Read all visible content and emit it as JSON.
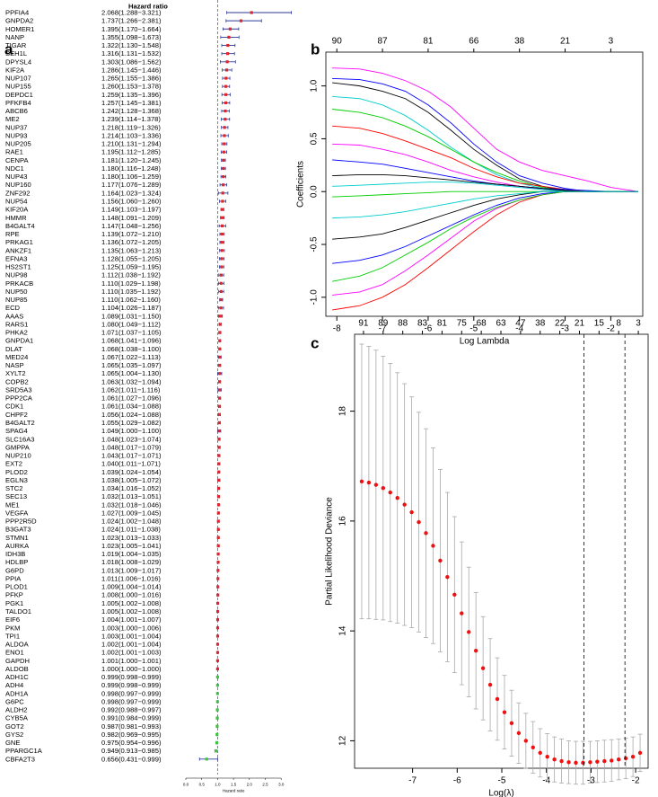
{
  "chart_data": [
    {
      "type": "forest",
      "panel": "a",
      "title": "Hazard ratio",
      "xlabel": "Hazard ratio",
      "categories": [
        "PPFIA4",
        "GNPDA2",
        "HOMER1",
        "NANP",
        "TIGAR",
        "SEH1L",
        "DPYSL4",
        "KIF2A",
        "NUP107",
        "NUP155",
        "DEPDC1",
        "PFKFB4",
        "ABCB6",
        "ME2",
        "NUP37",
        "NUP93",
        "NUP205",
        "RAE1",
        "CENPA",
        "NDC1",
        "NUP43",
        "NUP160",
        "ZNF292",
        "NUP54",
        "KIF20A",
        "HMMR",
        "B4GALT4",
        "RPE",
        "PRKAG1",
        "ANKZF1",
        "EFNA3",
        "HS2ST1",
        "NUP98",
        "PRKACB",
        "NUP50",
        "NUP85",
        "ECD",
        "AAAS",
        "RARS1",
        "PHKA2",
        "GNPDA1",
        "DLAT",
        "MED24",
        "NASP",
        "XYLT2",
        "COPB2",
        "SRD5A3",
        "PPP2CA",
        "CDK1",
        "CHPF2",
        "B4GALT2",
        "SPAG4",
        "SLC16A3",
        "GMPPA",
        "NUP210",
        "EXT2",
        "PLOD2",
        "EGLN3",
        "STC2",
        "SEC13",
        "ME1",
        "VEGFA",
        "PPP2R5D",
        "B3GAT3",
        "STMN1",
        "AURKA",
        "IDH3B",
        "HDLBP",
        "G6PD",
        "PPIA",
        "PLOD1",
        "PFKP",
        "PGK1",
        "TALDO1",
        "EIF6",
        "PKM",
        "TPI1",
        "ALDOA",
        "ENO1",
        "GAPDH",
        "ALDOB",
        "ADH1C",
        "ADH4",
        "ADH1A",
        "G6PC",
        "ALDH2",
        "CYB5A",
        "GOT2",
        "GYS2",
        "GNE",
        "PPARGC1A",
        "CBFA2T3"
      ],
      "values": [
        2.068,
        1.737,
        1.395,
        1.355,
        1.322,
        1.316,
        1.303,
        1.286,
        1.265,
        1.26,
        1.259,
        1.257,
        1.242,
        1.239,
        1.218,
        1.214,
        1.21,
        1.195,
        1.181,
        1.18,
        1.18,
        1.177,
        1.164,
        1.156,
        1.149,
        1.148,
        1.147,
        1.139,
        1.136,
        1.135,
        1.128,
        1.125,
        1.112,
        1.11,
        1.11,
        1.11,
        1.104,
        1.089,
        1.08,
        1.071,
        1.068,
        1.068,
        1.067,
        1.065,
        1.065,
        1.063,
        1.062,
        1.061,
        1.061,
        1.056,
        1.055,
        1.049,
        1.048,
        1.048,
        1.043,
        1.04,
        1.039,
        1.038,
        1.034,
        1.032,
        1.032,
        1.027,
        1.024,
        1.024,
        1.023,
        1.023,
        1.019,
        1.018,
        1.013,
        1.011,
        1.009,
        1.008,
        1.005,
        1.005,
        1.004,
        1.003,
        1.003,
        1.002,
        1.002,
        1.001,
        1.0,
        0.999,
        0.999,
        0.998,
        0.998,
        0.992,
        0.991,
        0.987,
        0.982,
        0.975,
        0.949,
        0.656
      ],
      "lower": [
        1.288,
        1.266,
        1.17,
        1.098,
        1.13,
        1.131,
        1.086,
        1.145,
        1.155,
        1.153,
        1.135,
        1.145,
        1.128,
        1.114,
        1.119,
        1.103,
        1.131,
        1.112,
        1.12,
        1.116,
        1.106,
        1.076,
        1.023,
        1.06,
        1.103,
        1.091,
        1.048,
        1.072,
        1.072,
        1.063,
        1.055,
        1.059,
        1.038,
        1.029,
        1.035,
        1.062,
        1.026,
        1.031,
        1.049,
        1.037,
        1.041,
        1.038,
        1.022,
        1.035,
        1.004,
        1.032,
        1.011,
        1.027,
        1.034,
        1.024,
        1.029,
        1.0,
        1.023,
        1.017,
        1.017,
        1.011,
        1.024,
        1.005,
        1.016,
        1.013,
        1.018,
        1.009,
        1.002,
        1.011,
        1.013,
        1.005,
        1.004,
        1.008,
        1.009,
        1.006,
        1.004,
        1.0,
        1.002,
        1.002,
        1.001,
        1.0,
        1.001,
        1.001,
        1.001,
        1.0,
        1.0,
        0.998,
        0.998,
        0.997,
        0.997,
        0.988,
        0.984,
        0.981,
        0.969,
        0.954,
        0.913,
        0.431
      ],
      "upper": [
        3.321,
        2.381,
        1.664,
        1.673,
        1.548,
        1.532,
        1.562,
        1.446,
        1.386,
        1.378,
        1.396,
        1.381,
        1.368,
        1.378,
        1.326,
        1.336,
        1.294,
        1.285,
        1.245,
        1.248,
        1.259,
        1.289,
        1.324,
        1.26,
        1.197,
        1.209,
        1.256,
        1.21,
        1.205,
        1.213,
        1.205,
        1.195,
        1.192,
        1.198,
        1.192,
        1.16,
        1.187,
        1.15,
        1.112,
        1.105,
        1.096,
        1.1,
        1.113,
        1.097,
        1.13,
        1.094,
        1.116,
        1.096,
        1.088,
        1.088,
        1.082,
        1.1,
        1.074,
        1.079,
        1.071,
        1.071,
        1.054,
        1.072,
        1.052,
        1.051,
        1.046,
        1.045,
        1.048,
        1.038,
        1.033,
        1.041,
        1.035,
        1.029,
        1.017,
        1.016,
        1.014,
        1.016,
        1.008,
        1.008,
        1.007,
        1.006,
        1.004,
        1.004,
        1.003,
        1.001,
        1.0,
        0.999,
        0.999,
        0.999,
        0.999,
        0.997,
        0.999,
        0.993,
        0.995,
        0.996,
        0.985,
        0.999
      ],
      "value_labels": [
        "2.068(1.288−3.321)",
        "1.737(1.266−2.381)",
        "1.395(1.170−1.664)",
        "1.355(1.098−1.673)",
        "1.322(1.130−1.548)",
        "1.316(1.131−1.532)",
        "1.303(1.086−1.562)",
        "1.286(1.145−1.446)",
        "1.265(1.155−1.386)",
        "1.260(1.153−1.378)",
        "1.259(1.135−1.396)",
        "1.257(1.145−1.381)",
        "1.242(1.128−1.368)",
        "1.239(1.114−1.378)",
        "1.218(1.119−1.326)",
        "1.214(1.103−1.336)",
        "1.210(1.131−1.294)",
        "1.195(1.112−1.285)",
        "1.181(1.120−1.245)",
        "1.180(1.116−1.248)",
        "1.180(1.106−1.259)",
        "1.177(1.076−1.289)",
        "1.164(1.023−1.324)",
        "1.156(1.060−1.260)",
        "1.149(1.103−1.197)",
        "1.148(1.091−1.209)",
        "1.147(1.048−1.256)",
        "1.139(1.072−1.210)",
        "1.136(1.072−1.205)",
        "1.135(1.063−1.213)",
        "1.128(1.055−1.205)",
        "1.125(1.059−1.195)",
        "1.112(1.038−1.192)",
        "1.110(1.029−1.198)",
        "1.110(1.035−1.192)",
        "1.110(1.062−1.160)",
        "1.104(1.026−1.187)",
        "1.089(1.031−1.150)",
        "1.080(1.049−1.112)",
        "1.071(1.037−1.105)",
        "1.068(1.041−1.096)",
        "1.068(1.038−1.100)",
        "1.067(1.022−1.113)",
        "1.065(1.035−1.097)",
        "1.065(1.004−1.130)",
        "1.063(1.032−1.094)",
        "1.062(1.011−1.116)",
        "1.061(1.027−1.096)",
        "1.061(1.034−1.088)",
        "1.056(1.024−1.088)",
        "1.055(1.029−1.082)",
        "1.049(1.000−1.100)",
        "1.048(1.023−1.074)",
        "1.048(1.017−1.079)",
        "1.043(1.017−1.071)",
        "1.040(1.011−1.071)",
        "1.039(1.024−1.054)",
        "1.038(1.005−1.072)",
        "1.034(1.016−1.052)",
        "1.032(1.013−1.051)",
        "1.032(1.018−1.046)",
        "1.027(1.009−1.045)",
        "1.024(1.002−1.048)",
        "1.024(1.011−1.038)",
        "1.023(1.013−1.033)",
        "1.023(1.005−1.041)",
        "1.019(1.004−1.035)",
        "1.018(1.008−1.029)",
        "1.013(1.009−1.017)",
        "1.011(1.006−1.016)",
        "1.009(1.004−1.014)",
        "1.008(1.000−1.016)",
        "1.005(1.002−1.008)",
        "1.005(1.002−1.008)",
        "1.004(1.001−1.007)",
        "1.003(1.000−1.006)",
        "1.003(1.001−1.004)",
        "1.002(1.001−1.004)",
        "1.002(1.001−1.003)",
        "1.001(1.000−1.001)",
        "1.000(1.000−1.000)",
        "0.999(0.998−0.999)",
        "0.999(0.998−0.999)",
        "0.998(0.997−0.999)",
        "0.998(0.997−0.999)",
        "0.992(0.988−0.997)",
        "0.991(0.984−0.999)",
        "0.987(0.981−0.993)",
        "0.982(0.969−0.995)",
        "0.975(0.954−0.996)",
        "0.949(0.913−0.985)",
        "0.656(0.431−0.999)"
      ],
      "refline": 1,
      "xlim": [
        0,
        3.35
      ],
      "xticks": [
        {
          "value": 0,
          "label": "0.0"
        },
        {
          "value": 0.5,
          "label": "0.5"
        },
        {
          "value": 1,
          "label": "1.0"
        },
        {
          "value": 1.5,
          "label": "1.5"
        },
        {
          "value": 2,
          "label": "2.0"
        },
        {
          "value": 2.5,
          "label": "2.5"
        },
        {
          "value": 3,
          "label": "3.0"
        }
      ],
      "colors": {
        "risk": "#e0242b",
        "protective": "#3cc43c",
        "interval": "#2b3a9a"
      }
    },
    {
      "type": "line",
      "panel": "b",
      "xlabel": "Log Lambda",
      "ylabel": "Coefficients",
      "x": [
        -8.1,
        -7.5,
        -7,
        -6.5,
        -6,
        -5.5,
        -5,
        -4.5,
        -4,
        -3.5,
        -3,
        -2.5,
        -2,
        -1.4
      ],
      "series": [
        {
          "color": "#ff00ff",
          "values": [
            1.17,
            1.16,
            1.12,
            1.05,
            0.95,
            0.8,
            0.6,
            0.4,
            0.28,
            0.2,
            0.15,
            0.1,
            0.04,
            0
          ]
        },
        {
          "color": "#0000ff",
          "values": [
            1.07,
            1.06,
            1.02,
            0.95,
            0.82,
            0.65,
            0.45,
            0.28,
            0.15,
            0.08,
            0.03,
            0,
            0,
            0
          ]
        },
        {
          "color": "#000000",
          "values": [
            1.03,
            1.0,
            0.95,
            0.88,
            0.75,
            0.58,
            0.4,
            0.25,
            0.12,
            0.05,
            0.01,
            0,
            0,
            0
          ]
        },
        {
          "color": "#00cdcd",
          "values": [
            0.9,
            0.88,
            0.82,
            0.72,
            0.58,
            0.42,
            0.28,
            0.16,
            0.08,
            0.03,
            0,
            0,
            0,
            0
          ]
        },
        {
          "color": "#00cd00",
          "values": [
            0.78,
            0.75,
            0.7,
            0.62,
            0.52,
            0.4,
            0.28,
            0.18,
            0.1,
            0.04,
            0.01,
            0,
            0,
            0
          ]
        },
        {
          "color": "#ff0000",
          "values": [
            0.62,
            0.6,
            0.55,
            0.48,
            0.4,
            0.32,
            0.22,
            0.14,
            0.08,
            0.05,
            0.02,
            0,
            0,
            0
          ]
        },
        {
          "color": "#ff00ff",
          "values": [
            0.45,
            0.44,
            0.4,
            0.35,
            0.28,
            0.2,
            0.14,
            0.09,
            0.05,
            0.02,
            0,
            0,
            0,
            0
          ]
        },
        {
          "color": "#0000ff",
          "values": [
            0.3,
            0.28,
            0.26,
            0.22,
            0.18,
            0.14,
            0.1,
            0.07,
            0.05,
            0.03,
            0.02,
            0.01,
            0,
            0
          ]
        },
        {
          "color": "#000000",
          "values": [
            0.15,
            0.16,
            0.16,
            0.15,
            0.13,
            0.11,
            0.09,
            0.07,
            0.05,
            0.03,
            0.01,
            0,
            0,
            0
          ]
        },
        {
          "color": "#00cdcd",
          "values": [
            0.05,
            0.06,
            0.07,
            0.08,
            0.09,
            0.09,
            0.08,
            0.06,
            0.04,
            0.02,
            0,
            0,
            0,
            0
          ]
        },
        {
          "color": "#00cd00",
          "values": [
            -0.05,
            -0.04,
            -0.03,
            -0.02,
            -0.01,
            0,
            0,
            0,
            0,
            0,
            0,
            0,
            0,
            0
          ]
        },
        {
          "color": "#ff0000",
          "values": [
            -1.12,
            -1.08,
            -1.0,
            -0.88,
            -0.72,
            -0.55,
            -0.38,
            -0.22,
            -0.1,
            -0.03,
            0,
            0,
            0,
            0
          ]
        },
        {
          "color": "#ff00ff",
          "values": [
            -0.98,
            -0.95,
            -0.88,
            -0.75,
            -0.6,
            -0.44,
            -0.28,
            -0.16,
            -0.08,
            -0.03,
            0,
            0,
            0,
            0
          ]
        },
        {
          "color": "#0000ff",
          "values": [
            -0.68,
            -0.65,
            -0.6,
            -0.52,
            -0.42,
            -0.32,
            -0.22,
            -0.13,
            -0.06,
            -0.02,
            0,
            0,
            0,
            0
          ]
        },
        {
          "color": "#000000",
          "values": [
            -0.45,
            -0.43,
            -0.4,
            -0.34,
            -0.27,
            -0.2,
            -0.13,
            -0.07,
            -0.03,
            0,
            0,
            0,
            0,
            0
          ]
        },
        {
          "color": "#00cd00",
          "values": [
            -0.85,
            -0.8,
            -0.72,
            -0.6,
            -0.48,
            -0.35,
            -0.24,
            -0.15,
            -0.08,
            -0.03,
            0,
            0,
            0,
            0
          ]
        },
        {
          "color": "#00cdcd",
          "values": [
            -0.25,
            -0.24,
            -0.22,
            -0.19,
            -0.15,
            -0.11,
            -0.07,
            -0.04,
            -0.02,
            0,
            0,
            0,
            0,
            0
          ]
        }
      ],
      "xlim": [
        -8.24,
        -1.3
      ],
      "ylim": [
        -1.18,
        1.32
      ],
      "xticks": [
        -8,
        -7,
        -6,
        -5,
        -4,
        -3,
        -2
      ],
      "yticks": [
        {
          "value": -1,
          "label": "-1.0"
        },
        {
          "value": -0.5,
          "label": "-0.5"
        },
        {
          "value": 0,
          "label": "0.0"
        },
        {
          "value": 0.5,
          "label": "0.5"
        },
        {
          "value": 1,
          "label": "1.0"
        }
      ],
      "x2ticks": [
        {
          "value": -8,
          "label": "90"
        },
        {
          "value": -7,
          "label": "87"
        },
        {
          "value": -6,
          "label": "81"
        },
        {
          "value": -5,
          "label": "66"
        },
        {
          "value": -4,
          "label": "38"
        },
        {
          "value": -3,
          "label": "21"
        },
        {
          "value": -2,
          "label": "3"
        }
      ]
    },
    {
      "type": "errorbar",
      "panel": "c",
      "xlabel": "Log(λ)",
      "ylabel": "Partial Likelihood Deviance",
      "x": [
        -8.14,
        -7.98,
        -7.82,
        -7.66,
        -7.5,
        -7.34,
        -7.18,
        -7.02,
        -6.86,
        -6.7,
        -6.54,
        -6.38,
        -6.22,
        -6.06,
        -5.9,
        -5.74,
        -5.58,
        -5.42,
        -5.26,
        -5.1,
        -4.94,
        -4.78,
        -4.62,
        -4.46,
        -4.3,
        -4.14,
        -3.98,
        -3.82,
        -3.66,
        -3.5,
        -3.34,
        -3.18,
        -3.02,
        -2.86,
        -2.7,
        -2.54,
        -2.38,
        -2.22,
        -2.06,
        -1.9
      ],
      "values": [
        16.72,
        16.7,
        16.66,
        16.6,
        16.52,
        16.42,
        16.3,
        16.16,
        15.98,
        15.78,
        15.55,
        15.28,
        14.98,
        14.66,
        14.32,
        13.98,
        13.64,
        13.32,
        13.02,
        12.76,
        12.52,
        12.32,
        12.14,
        12.0,
        11.88,
        11.78,
        11.71,
        11.66,
        11.63,
        11.61,
        11.6,
        11.6,
        11.61,
        11.62,
        11.63,
        11.64,
        11.66,
        11.68,
        11.71,
        11.78
      ],
      "error": [
        2.5,
        2.48,
        2.45,
        2.4,
        2.35,
        2.28,
        2.2,
        2.1,
        2.0,
        1.9,
        1.78,
        1.66,
        1.54,
        1.42,
        1.3,
        1.18,
        1.06,
        0.94,
        0.84,
        0.75,
        0.67,
        0.6,
        0.55,
        0.5,
        0.47,
        0.44,
        0.42,
        0.41,
        0.4,
        0.39,
        0.39,
        0.39,
        0.38,
        0.38,
        0.38,
        0.38,
        0.37,
        0.37,
        0.36,
        0.34
      ],
      "vlines": [
        -3.16,
        -2.24
      ],
      "xlim": [
        -8.3,
        -1.72
      ],
      "ylim": [
        11.5,
        19.4
      ],
      "xticks": [
        -7,
        -6,
        -5,
        -4,
        -3,
        -2
      ],
      "yticks": [
        12,
        14,
        16,
        18
      ],
      "x2ticks": [
        {
          "value": -8.1,
          "label": "91"
        },
        {
          "value": -7.66,
          "label": "89"
        },
        {
          "value": -7.22,
          "label": "88"
        },
        {
          "value": -6.78,
          "label": "83"
        },
        {
          "value": -6.34,
          "label": "81"
        },
        {
          "value": -5.9,
          "label": "75"
        },
        {
          "value": -5.46,
          "label": "68"
        },
        {
          "value": -5.02,
          "label": "63"
        },
        {
          "value": -4.58,
          "label": "47"
        },
        {
          "value": -4.14,
          "label": "38"
        },
        {
          "value": -3.7,
          "label": "22"
        },
        {
          "value": -3.26,
          "label": "21"
        },
        {
          "value": -2.82,
          "label": "15"
        },
        {
          "value": -2.38,
          "label": "8"
        },
        {
          "value": -1.94,
          "label": "3"
        }
      ],
      "colors": {
        "point": "#ee1111",
        "bar": "#a9a9a9"
      }
    }
  ]
}
